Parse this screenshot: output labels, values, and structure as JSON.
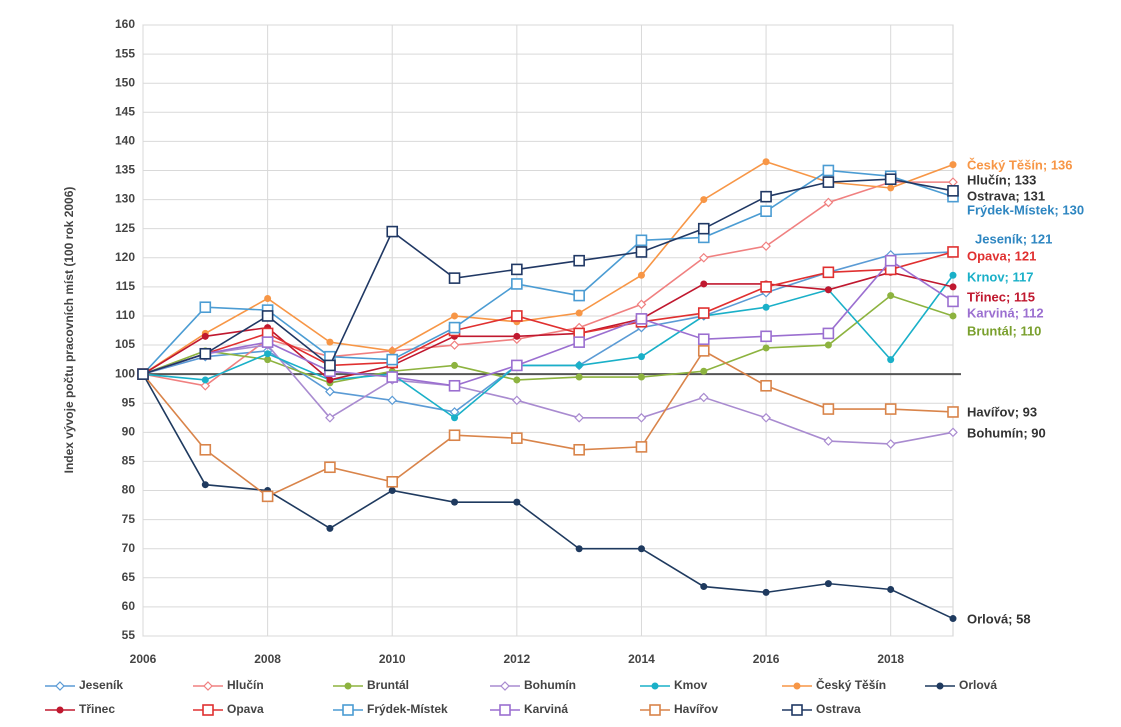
{
  "chart_data": {
    "type": "line",
    "y_label": "Index vývoje počtu pracovních míst (100 rok 2006)",
    "x": [
      2006,
      2007,
      2008,
      2009,
      2010,
      2011,
      2012,
      2013,
      2014,
      2015,
      2016,
      2017,
      2018,
      2019
    ],
    "xlim": [
      2006,
      2019
    ],
    "xticks": [
      2006,
      2008,
      2010,
      2012,
      2014,
      2016,
      2018
    ],
    "ylim": [
      55,
      160
    ],
    "yticks": [
      55,
      60,
      65,
      70,
      75,
      80,
      85,
      90,
      95,
      100,
      105,
      110,
      115,
      120,
      125,
      130,
      135,
      140,
      145,
      150,
      155,
      160
    ],
    "grid": true,
    "reference_line": 100,
    "series": [
      {
        "name": "Jeseník",
        "color": "#5b9bd5",
        "marker": "diamond",
        "values": [
          100,
          103,
          104,
          97,
          95.5,
          93.5,
          101.5,
          101.5,
          108,
          110,
          114,
          117.5,
          120.5,
          121
        ]
      },
      {
        "name": "Hlučín",
        "color": "#f08080",
        "marker": "diamond",
        "values": [
          100,
          98,
          106,
          103,
          104,
          105,
          106,
          108,
          112,
          120,
          122,
          129.5,
          133,
          133
        ]
      },
      {
        "name": "Bruntál",
        "color": "#8db33f",
        "marker": "circle",
        "values": [
          100,
          104,
          102.5,
          98.5,
          100.5,
          101.5,
          99,
          99.5,
          99.5,
          100.5,
          104.5,
          105,
          113.5,
          110
        ]
      },
      {
        "name": "Bohumín",
        "color": "#a98bd0",
        "marker": "diamond",
        "values": [
          100,
          103.5,
          105,
          92.5,
          99,
          98,
          95.5,
          92.5,
          92.5,
          96,
          92.5,
          88.5,
          88,
          90
        ]
      },
      {
        "name": "Kmov",
        "color": "#1ab0c8",
        "marker": "circle",
        "values": [
          100,
          99,
          103.5,
          99,
          100,
          92.5,
          101.5,
          101.5,
          103,
          110,
          111.5,
          114.5,
          102.5,
          117
        ]
      },
      {
        "name": "Český Těšín",
        "color": "#f79646",
        "marker": "circle",
        "values": [
          100,
          107,
          113,
          105.5,
          104,
          110,
          109,
          110.5,
          117,
          130,
          136.5,
          133,
          132,
          136
        ]
      },
      {
        "name": "Orlová",
        "color": "#1f3a5f",
        "marker": "circle",
        "values": [
          100,
          81,
          80,
          73.5,
          80,
          78,
          78,
          70,
          70,
          63.5,
          62.5,
          64,
          63,
          58
        ]
      },
      {
        "name": "Třinec",
        "color": "#c0182f",
        "marker": "circle",
        "values": [
          100,
          106.5,
          108,
          99,
          101.5,
          106.5,
          106.5,
          107,
          109.5,
          115.5,
          115.5,
          114.5,
          117.5,
          115
        ]
      },
      {
        "name": "Opava",
        "color": "#e03030",
        "marker": "square",
        "values": [
          100,
          103.5,
          107,
          101.5,
          102,
          107.5,
          110,
          107,
          109,
          110.5,
          115,
          117.5,
          118,
          121
        ]
      },
      {
        "name": "Frýdek-Místek",
        "color": "#4b9cd3",
        "marker": "square",
        "values": [
          100,
          111.5,
          111,
          103,
          102.5,
          108,
          115.5,
          113.5,
          123,
          123.5,
          128,
          135,
          134,
          130.5
        ]
      },
      {
        "name": "Karviná",
        "color": "#9b6fd0",
        "marker": "square",
        "values": [
          100,
          103.5,
          105.5,
          100.5,
          99.5,
          98,
          101.5,
          105.5,
          109.5,
          106,
          106.5,
          107,
          119.5,
          112.5
        ]
      },
      {
        "name": "Havířov",
        "color": "#d9844a",
        "marker": "square",
        "values": [
          100,
          87,
          79,
          84,
          81.5,
          89.5,
          89,
          87,
          87.5,
          104,
          98,
          94,
          94,
          93.5
        ]
      },
      {
        "name": "Ostrava",
        "color": "#203864",
        "marker": "square",
        "values": [
          100,
          103.5,
          110,
          101.5,
          124.5,
          116.5,
          118,
          119.5,
          121,
          125,
          130.5,
          133,
          133.5,
          131.5
        ]
      }
    ],
    "annotations": [
      {
        "text": "Český Těšín; 136",
        "color": "#f79646"
      },
      {
        "text": "Hlučín; 133",
        "color": "#333333"
      },
      {
        "text": "Ostrava; 131",
        "color": "#333333"
      },
      {
        "text": "Frýdek-Místek; 130",
        "color": "#2e86c1"
      },
      {
        "text": "Jeseník; 121",
        "color": "#2e86c1"
      },
      {
        "text": "Opava; 121",
        "color": "#e03030"
      },
      {
        "text": "Krnov; 117",
        "color": "#1ab0c8"
      },
      {
        "text": "Třinec; 115",
        "color": "#c0182f"
      },
      {
        "text": "Karviná; 112",
        "color": "#9b6fd0"
      },
      {
        "text": "Bruntál; 110",
        "color": "#7aa02e"
      },
      {
        "text": "Havířov; 93",
        "color": "#333333"
      },
      {
        "text": "Bohumín; 90",
        "color": "#333333"
      },
      {
        "text": "Orlová; 58",
        "color": "#333333"
      }
    ]
  }
}
